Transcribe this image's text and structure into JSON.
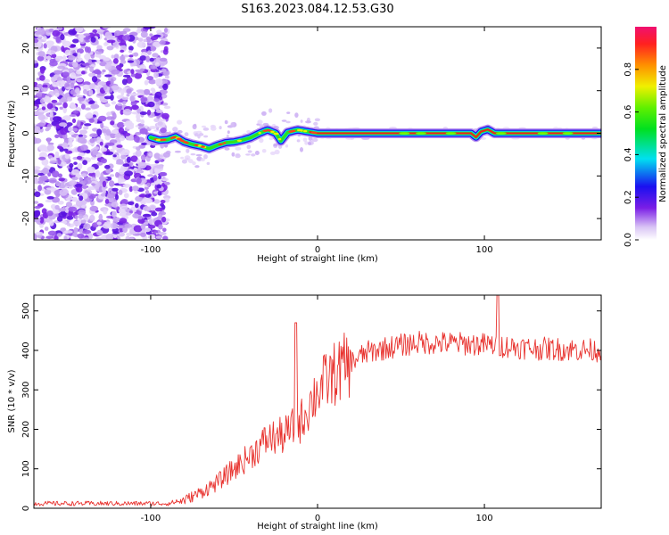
{
  "title": "S163.2023.084.12.53.G30",
  "chart_data": [
    {
      "type": "heatmap",
      "xlabel": "Height of straight line (km)",
      "ylabel": "Frequency (Hz)",
      "xlim": [
        -170,
        170
      ],
      "ylim": [
        -25,
        25
      ],
      "xticks": [
        -100,
        0,
        100
      ],
      "yticks": [
        -20,
        -10,
        0,
        10,
        20
      ],
      "ridge": [
        {
          "x": -100,
          "y": -1.0
        },
        {
          "x": -95,
          "y": -1.6
        },
        {
          "x": -90,
          "y": -1.5
        },
        {
          "x": -85,
          "y": -0.8
        },
        {
          "x": -80,
          "y": -2.0
        },
        {
          "x": -75,
          "y": -2.6
        },
        {
          "x": -70,
          "y": -3.0
        },
        {
          "x": -65,
          "y": -3.6
        },
        {
          "x": -60,
          "y": -2.8
        },
        {
          "x": -55,
          "y": -2.2
        },
        {
          "x": -50,
          "y": -2.0
        },
        {
          "x": -45,
          "y": -1.6
        },
        {
          "x": -40,
          "y": -1.0
        },
        {
          "x": -35,
          "y": 0.0
        },
        {
          "x": -30,
          "y": 0.8
        },
        {
          "x": -25,
          "y": 0.0
        },
        {
          "x": -22,
          "y": -1.8
        },
        {
          "x": -18,
          "y": 0.2
        },
        {
          "x": -12,
          "y": 0.8
        },
        {
          "x": -6,
          "y": 0.4
        },
        {
          "x": 0,
          "y": 0.0
        },
        {
          "x": 50,
          "y": 0.0
        },
        {
          "x": 92,
          "y": 0.0
        },
        {
          "x": 95,
          "y": -0.9
        },
        {
          "x": 98,
          "y": 0.4
        },
        {
          "x": 102,
          "y": 0.9
        },
        {
          "x": 106,
          "y": 0.0
        },
        {
          "x": 170,
          "y": 0.0
        }
      ],
      "colorbar": {
        "label": "Normalized spectral amplitude",
        "ticks": [
          "0.0",
          "0.2",
          "0.4",
          "0.6",
          "0.8"
        ],
        "range": [
          0,
          1
        ]
      }
    },
    {
      "type": "line",
      "xlabel": "Height of straight line (km)",
      "ylabel": "SNR (10 * v/v)",
      "xlim": [
        -170,
        170
      ],
      "ylim": [
        0,
        540
      ],
      "xticks": [
        -100,
        0,
        100
      ],
      "yticks": [
        0,
        100,
        200,
        300,
        400,
        500
      ],
      "color": "#e8322e",
      "trend": [
        {
          "x": -170,
          "y": 12
        },
        {
          "x": -90,
          "y": 12
        },
        {
          "x": -80,
          "y": 20
        },
        {
          "x": -70,
          "y": 40
        },
        {
          "x": -60,
          "y": 65
        },
        {
          "x": -50,
          "y": 100
        },
        {
          "x": -40,
          "y": 135
        },
        {
          "x": -30,
          "y": 175
        },
        {
          "x": -20,
          "y": 185
        },
        {
          "x": -10,
          "y": 220
        },
        {
          "x": 0,
          "y": 300
        },
        {
          "x": 10,
          "y": 340
        },
        {
          "x": 20,
          "y": 370
        },
        {
          "x": 30,
          "y": 395
        },
        {
          "x": 40,
          "y": 405
        },
        {
          "x": 60,
          "y": 420
        },
        {
          "x": 80,
          "y": 418
        },
        {
          "x": 100,
          "y": 415
        },
        {
          "x": 130,
          "y": 405
        },
        {
          "x": 170,
          "y": 400
        }
      ],
      "spikes": [
        {
          "x": -13,
          "y": 470
        },
        {
          "x": 108,
          "y": 540
        }
      ]
    }
  ]
}
